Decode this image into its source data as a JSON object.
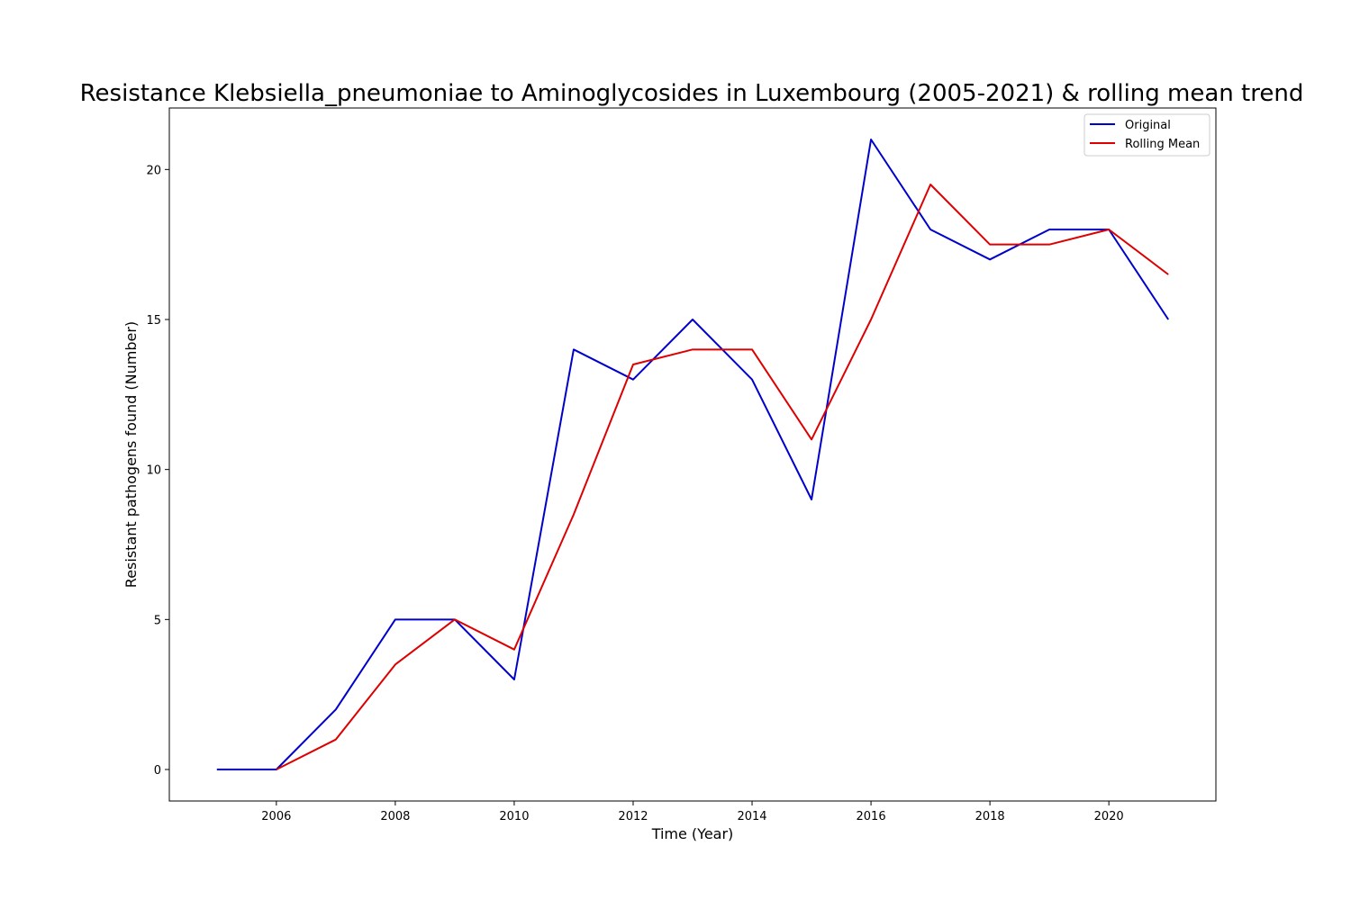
{
  "chart_data": {
    "type": "line",
    "title": "Resistance Klebsiella_pneumoniae to Aminoglycosides in Luxembourg (2005-2021) & rolling mean trend",
    "xlabel": "Time (Year)",
    "ylabel": "Resistant pathogens found (Number)",
    "x": [
      2005,
      2006,
      2007,
      2008,
      2009,
      2010,
      2011,
      2012,
      2013,
      2014,
      2015,
      2016,
      2017,
      2018,
      2019,
      2020,
      2021
    ],
    "series": [
      {
        "name": "Original",
        "color": "#0000cc",
        "values": [
          0,
          0,
          2,
          5,
          5,
          3,
          14,
          13,
          15,
          13,
          9,
          21,
          18,
          17,
          18,
          18,
          15
        ]
      },
      {
        "name": "Rolling Mean",
        "color": "#dd0000",
        "values": [
          null,
          0,
          1,
          3.5,
          5,
          4,
          8.5,
          13.5,
          14,
          14,
          11,
          15,
          19.5,
          17.5,
          17.5,
          18,
          16.5
        ]
      }
    ],
    "xlim": [
      2004.2,
      2021.8
    ],
    "ylim": [
      -1.05,
      22.05
    ],
    "xticks": [
      2006,
      2008,
      2010,
      2012,
      2014,
      2016,
      2018,
      2020
    ],
    "yticks": [
      0,
      5,
      10,
      15,
      20
    ],
    "grid": false,
    "legend": "top-right"
  }
}
